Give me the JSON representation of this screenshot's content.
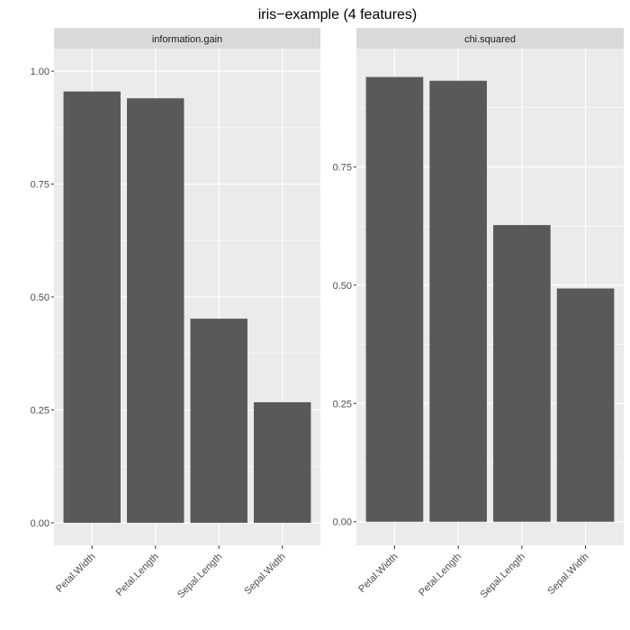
{
  "title": "iris−example (4 features)",
  "chart_data": {
    "type": "bar",
    "title": "iris−example (4 features)",
    "xlabel": "",
    "ylabel": "",
    "grid": true,
    "categories": [
      "Petal.Width",
      "Petal.Length",
      "Sepal.Length",
      "Sepal.Width"
    ],
    "panels": [
      {
        "strip": "information.gain",
        "values": [
          0.955,
          0.94,
          0.452,
          0.267
        ],
        "ylim": [
          -0.05,
          1.05
        ],
        "yticks": [
          0.0,
          0.25,
          0.5,
          0.75,
          1.0
        ],
        "yticklabels": [
          "0.00",
          "0.25",
          "0.50",
          "0.75",
          "1.00"
        ]
      },
      {
        "strip": "chi.squared",
        "values": [
          0.94,
          0.932,
          0.627,
          0.493
        ],
        "ylim": [
          -0.05,
          1.0
        ],
        "yticks": [
          0.0,
          0.25,
          0.5,
          0.75
        ],
        "yticklabels": [
          "0.00",
          "0.25",
          "0.50",
          "0.75"
        ]
      }
    ]
  },
  "colors": {
    "bar": "#595959",
    "panel_bg": "#ebebeb",
    "strip_bg": "#d9d9d9",
    "grid_major": "#ffffff",
    "tick": "#333333"
  }
}
